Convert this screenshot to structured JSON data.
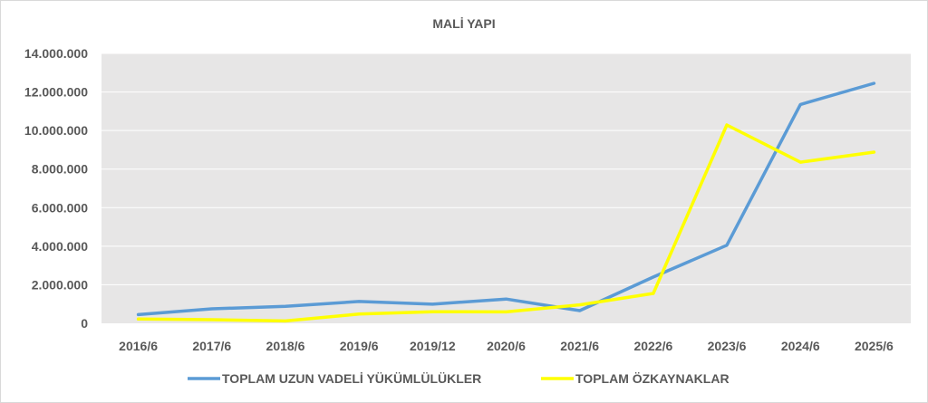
{
  "chart_data": {
    "type": "line",
    "title": "MALİ YAPI",
    "categories": [
      "2016/6",
      "2017/6",
      "2018/6",
      "2019/6",
      "2019/12",
      "2020/6",
      "2021/6",
      "2022/6",
      "2023/6",
      "2024/6",
      "2025/6"
    ],
    "y_tick_labels": [
      "0",
      "2.000.000",
      "4.000.000",
      "6.000.000",
      "8.000.000",
      "10.000.000",
      "12.000.000",
      "14.000.000"
    ],
    "ylim": [
      0,
      14000000
    ],
    "grid": true,
    "legend_position": "bottom",
    "series": [
      {
        "name": "TOPLAM UZUN VADELİ YÜKÜMLÜLÜKLER",
        "color": "#5b9bd5",
        "values": [
          450000,
          750000,
          880000,
          1130000,
          990000,
          1260000,
          660000,
          2400000,
          4050000,
          11350000,
          12450000
        ]
      },
      {
        "name": "TOPLAM ÖZKAYNAKLAR",
        "color": "#ffff00",
        "values": [
          220000,
          190000,
          120000,
          480000,
          600000,
          590000,
          960000,
          1550000,
          10290000,
          8360000,
          8880000
        ]
      }
    ],
    "plot_background": "#e7e6e6",
    "gridline_color": "#ffffff"
  }
}
